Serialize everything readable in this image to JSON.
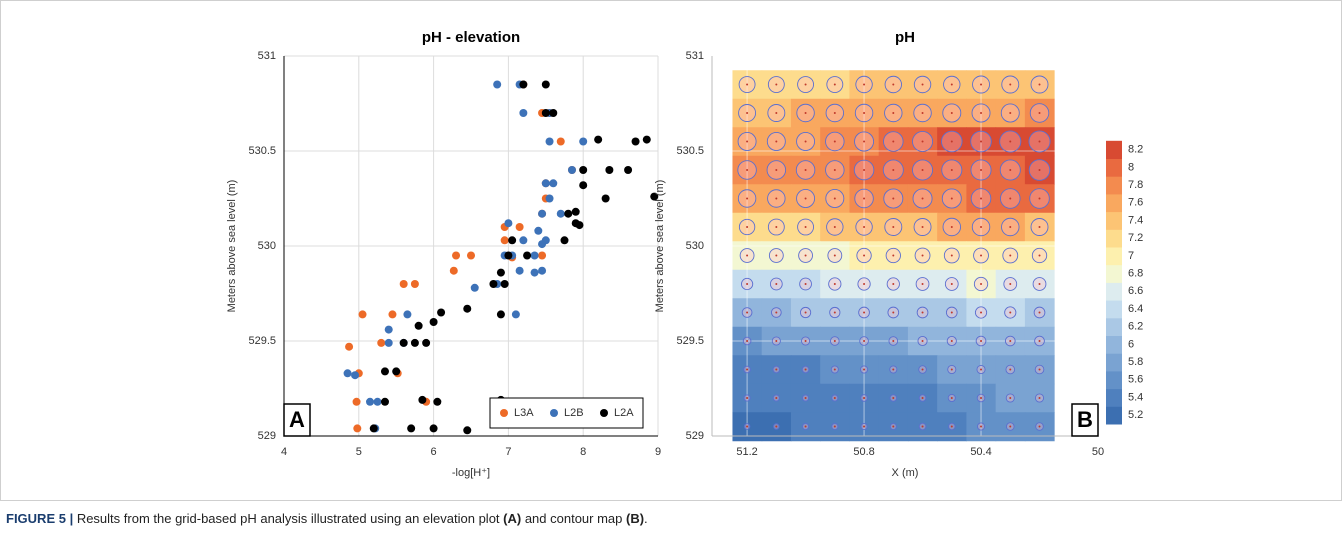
{
  "chart_data": [
    {
      "type": "scatter",
      "title": "pH - elevation",
      "x_label": "-log[H⁺]",
      "y_label": "Meters above sea level (m)",
      "panel": "A",
      "xlim": [
        4,
        9
      ],
      "xticks": [
        4,
        5,
        6,
        7,
        8,
        9
      ],
      "ylim": [
        529,
        531
      ],
      "yticks": [
        529,
        529.5,
        530,
        530.5,
        531
      ],
      "grid": true,
      "legend": "lower right",
      "series": [
        {
          "name": "L3A",
          "color": "#ed6a27",
          "x": [
            4.87,
            5.0,
            5.05,
            4.97,
            4.98,
            5.3,
            5.45,
            5.6,
            5.75,
            5.52,
            5.9,
            6.3,
            6.5,
            6.27,
            6.95,
            6.95,
            7.15,
            7.05,
            7.5,
            7.45,
            7.5,
            7.85,
            7.7,
            7.45,
            7.55,
            7.2,
            7.45
          ],
          "values": [
            529.47,
            529.33,
            529.64,
            529.18,
            529.04,
            529.49,
            529.64,
            529.8,
            529.8,
            529.33,
            529.18,
            529.95,
            529.95,
            529.87,
            530.03,
            530.1,
            530.1,
            529.94,
            530.25,
            530.17,
            530.33,
            530.4,
            530.55,
            530.7,
            530.7,
            530.85,
            529.95
          ]
        },
        {
          "name": "L2B",
          "color": "#3d72b8",
          "x": [
            4.85,
            4.95,
            5.15,
            5.22,
            5.25,
            5.4,
            5.6,
            5.65,
            5.4,
            6.55,
            6.85,
            7.1,
            7.0,
            7.05,
            7.2,
            7.15,
            7.35,
            7.35,
            7.4,
            7.45,
            7.45,
            7.45,
            7.5,
            7.6,
            7.55,
            7.7,
            7.85,
            8.0,
            7.55,
            7.2,
            7.55,
            6.85,
            7.15,
            6.95,
            7.5
          ],
          "values": [
            529.33,
            529.32,
            529.18,
            529.04,
            529.18,
            529.49,
            529.49,
            529.64,
            529.56,
            529.78,
            529.8,
            529.64,
            530.12,
            529.95,
            530.03,
            529.87,
            529.95,
            529.86,
            530.08,
            530.01,
            529.87,
            530.17,
            530.33,
            530.33,
            530.25,
            530.17,
            530.4,
            530.55,
            530.55,
            530.7,
            530.7,
            530.85,
            530.85,
            529.95,
            530.03
          ]
        },
        {
          "name": "L2A",
          "color": "#000000",
          "x": [
            5.2,
            5.35,
            5.35,
            5.5,
            5.6,
            5.75,
            5.9,
            5.8,
            6.0,
            6.1,
            5.7,
            5.85,
            6.0,
            6.05,
            6.45,
            6.9,
            6.45,
            6.9,
            6.95,
            6.8,
            6.9,
            7.0,
            7.05,
            7.25,
            7.75,
            7.9,
            7.8,
            7.9,
            8.0,
            8.3,
            8.0,
            8.6,
            8.35,
            8.2,
            8.7,
            8.85,
            8.95,
            7.95,
            7.5,
            7.6,
            7.2,
            7.5
          ],
          "values": [
            529.04,
            529.18,
            529.34,
            529.34,
            529.49,
            529.49,
            529.49,
            529.58,
            529.6,
            529.65,
            529.04,
            529.19,
            529.04,
            529.18,
            529.03,
            529.19,
            529.67,
            529.64,
            529.8,
            529.8,
            529.86,
            529.95,
            530.03,
            529.95,
            530.03,
            530.12,
            530.17,
            530.18,
            530.32,
            530.25,
            530.4,
            530.4,
            530.4,
            530.56,
            530.55,
            530.56,
            530.26,
            530.11,
            530.7,
            530.7,
            530.85,
            530.85
          ]
        }
      ]
    },
    {
      "type": "contour",
      "title": "pH",
      "x_label": "X (m)",
      "y_label": "Meters above sea level (m)",
      "panel": "B",
      "xlim": [
        51.32,
        50
      ],
      "xticks": [
        51.2,
        50.8,
        50.4,
        50
      ],
      "ylim": [
        529,
        531
      ],
      "yticks": [
        529,
        529.5,
        530,
        530.5,
        531
      ],
      "grid": true,
      "x": [
        51.2,
        51.1,
        51.0,
        50.9,
        50.8,
        50.7,
        50.6,
        50.5,
        50.4,
        50.3,
        50.2
      ],
      "y": [
        530.85,
        530.7,
        530.55,
        530.4,
        530.25,
        530.1,
        529.95,
        529.8,
        529.65,
        529.5,
        529.35,
        529.2,
        529.05
      ],
      "z": [
        [
          7.3,
          7.3,
          7.3,
          7.3,
          7.4,
          7.4,
          7.4,
          7.4,
          7.5,
          7.5,
          7.5
        ],
        [
          7.5,
          7.5,
          7.6,
          7.6,
          7.6,
          7.6,
          7.6,
          7.7,
          7.7,
          7.7,
          7.8
        ],
        [
          7.7,
          7.7,
          7.7,
          7.8,
          7.9,
          8.0,
          8.1,
          8.2,
          8.2,
          8.3,
          8.3
        ],
        [
          7.8,
          7.8,
          7.8,
          7.8,
          8.0,
          8.1,
          8.1,
          8.1,
          8.1,
          8.1,
          8.2
        ],
        [
          7.6,
          7.6,
          7.7,
          7.7,
          7.8,
          7.9,
          7.9,
          7.9,
          8.0,
          8.0,
          8.0
        ],
        [
          7.2,
          7.3,
          7.3,
          7.4,
          7.4,
          7.5,
          7.5,
          7.6,
          7.6,
          7.6,
          7.5
        ],
        [
          6.9,
          6.9,
          6.9,
          6.9,
          7.0,
          7.0,
          7.1,
          7.1,
          7.1,
          7.1,
          7.0
        ],
        [
          6.4,
          6.5,
          6.5,
          6.6,
          6.6,
          6.6,
          6.7,
          6.7,
          6.8,
          6.7,
          6.7
        ],
        [
          6.1,
          6.1,
          6.2,
          6.2,
          6.3,
          6.3,
          6.3,
          6.3,
          6.4,
          6.4,
          6.3
        ],
        [
          5.7,
          5.8,
          5.8,
          5.9,
          5.9,
          5.9,
          6.0,
          6.0,
          6.1,
          6.1,
          6.1
        ],
        [
          5.5,
          5.5,
          5.5,
          5.6,
          5.6,
          5.6,
          5.7,
          5.8,
          5.8,
          5.9,
          5.9
        ],
        [
          5.4,
          5.4,
          5.4,
          5.4,
          5.5,
          5.5,
          5.5,
          5.6,
          5.7,
          5.8,
          5.8
        ],
        [
          5.3,
          5.3,
          5.4,
          5.4,
          5.4,
          5.4,
          5.5,
          5.5,
          5.6,
          5.7,
          5.7
        ]
      ],
      "levels": [
        5.2,
        5.4,
        5.6,
        5.8,
        6,
        6.2,
        6.4,
        6.6,
        6.8,
        7,
        7.2,
        7.4,
        7.6,
        7.8,
        8,
        8.2
      ],
      "level_colors": [
        "#3c6fb1",
        "#4f80be",
        "#6391c8",
        "#7aa3d2",
        "#91b5dc",
        "#aac8e5",
        "#c4dcee",
        "#ddecef",
        "#f3f7d2",
        "#fdf0ae",
        "#fddc8d",
        "#fcc474",
        "#f9a85f",
        "#f38b4f",
        "#e96a40",
        "#d84a32"
      ],
      "marker_color": "#5a6fd0"
    }
  ],
  "caption": {
    "label": "FIGURE 5 |",
    "parts": [
      " Results from the grid-based pH analysis illustrated using an elevation plot ",
      "(A)",
      " and contour map ",
      "(B)",
      "."
    ]
  }
}
